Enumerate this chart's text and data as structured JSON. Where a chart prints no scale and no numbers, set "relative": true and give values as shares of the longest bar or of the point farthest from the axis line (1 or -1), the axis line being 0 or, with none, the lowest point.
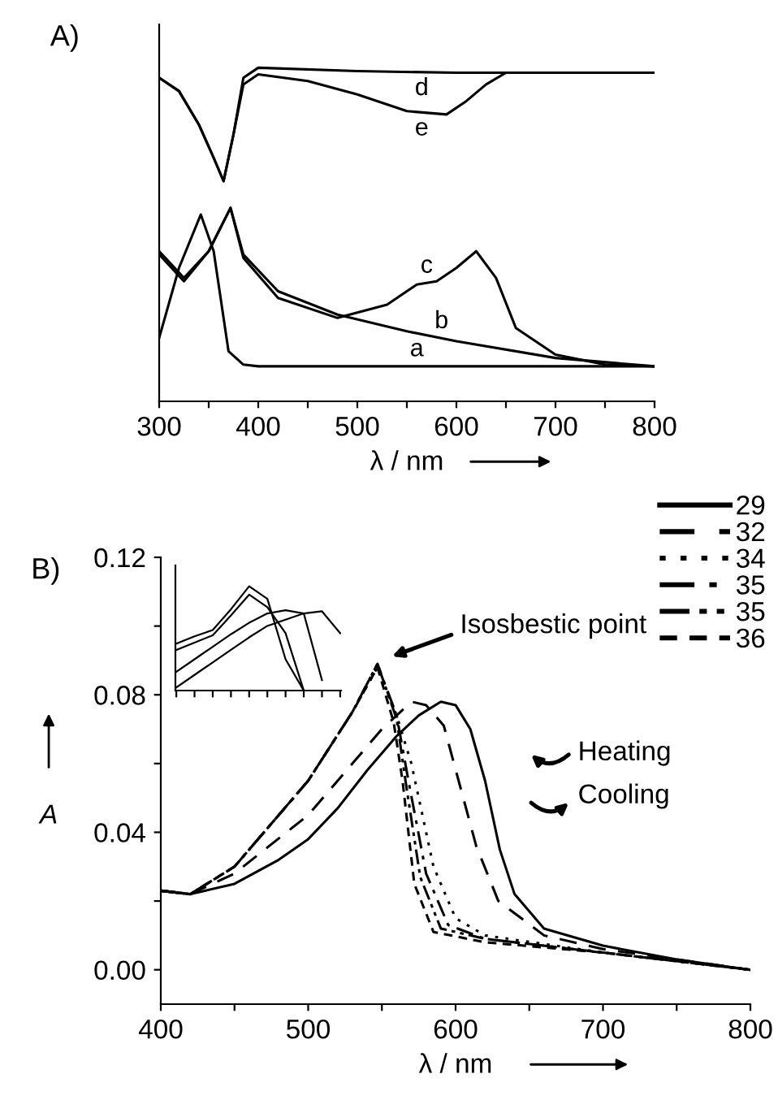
{
  "chart_data": [
    {
      "type": "line",
      "title": "A)",
      "xlabel": "λ / nm",
      "relative": true,
      "tick_labels": "x",
      "xlim": [
        300,
        800
      ],
      "xticks": [
        300,
        {
          "value": 350,
          "label": null
        },
        400,
        {
          "value": 450,
          "label": null
        },
        500,
        {
          "value": 550,
          "label": null
        },
        600,
        {
          "value": 650,
          "label": null
        },
        700,
        {
          "value": 750,
          "label": null
        },
        800
      ],
      "series": [
        {
          "name": "a",
          "color": "#000000",
          "x": [
            300,
            320,
            342,
            355,
            370,
            385,
            400,
            600,
            800
          ],
          "values": [
            0.19,
            0.4,
            0.56,
            0.45,
            0.15,
            0.11,
            0.105,
            0.105,
            0.105
          ]
        },
        {
          "name": "b",
          "color": "#000000",
          "x": [
            300,
            325,
            350,
            372,
            385,
            420,
            480,
            550,
            600,
            700,
            800
          ],
          "values": [
            0.45,
            0.37,
            0.45,
            0.58,
            0.44,
            0.33,
            0.26,
            0.21,
            0.18,
            0.13,
            0.105
          ]
        },
        {
          "name": "c",
          "color": "#000000",
          "x": [
            300,
            325,
            350,
            372,
            385,
            420,
            480,
            530,
            560,
            580,
            600,
            620,
            640,
            660,
            700,
            750,
            800
          ],
          "values": [
            0.44,
            0.36,
            0.45,
            0.58,
            0.43,
            0.31,
            0.25,
            0.29,
            0.35,
            0.36,
            0.4,
            0.45,
            0.37,
            0.22,
            0.14,
            0.11,
            0.105
          ]
        },
        {
          "name": "d",
          "color": "#000000",
          "x": [
            300,
            320,
            340,
            355,
            365,
            375,
            385,
            400,
            500,
            600,
            800
          ],
          "values": [
            0.97,
            0.93,
            0.83,
            0.73,
            0.66,
            0.8,
            0.97,
            1.0,
            0.99,
            0.985,
            0.985
          ]
        },
        {
          "name": "e",
          "color": "#000000",
          "x": [
            300,
            320,
            340,
            355,
            365,
            375,
            385,
            400,
            450,
            500,
            550,
            590,
            610,
            630,
            650,
            800
          ],
          "values": [
            0.97,
            0.93,
            0.83,
            0.73,
            0.66,
            0.8,
            0.95,
            0.98,
            0.96,
            0.92,
            0.87,
            0.86,
            0.9,
            0.95,
            0.985,
            0.985
          ]
        }
      ]
    },
    {
      "type": "line",
      "title": "B)",
      "xlabel": "λ / nm",
      "ylabel": "A",
      "xlim": [
        400,
        800
      ],
      "ylim": [
        -0.01,
        0.12
      ],
      "xticks": [
        400,
        {
          "value": 450,
          "label": null
        },
        500,
        {
          "value": 550,
          "label": null
        },
        600,
        {
          "value": 650,
          "label": null
        },
        700,
        {
          "value": 750,
          "label": null
        },
        800
      ],
      "yticks": [
        {
          "value": 0,
          "label": "0.00"
        },
        {
          "value": 0.02,
          "label": null
        },
        {
          "value": 0.04,
          "label": "0.04"
        },
        {
          "value": 0.06,
          "label": null
        },
        {
          "value": 0.08,
          "label": "0.08"
        },
        {
          "value": 0.1,
          "label": null
        },
        {
          "value": 0.12,
          "label": "0.12"
        }
      ],
      "legend": "top right",
      "annotations": [
        "Isosbestic point",
        "Heating",
        "Cooling"
      ],
      "series": [
        {
          "name": "29",
          "color": "#000000",
          "line_style": "solid",
          "x": [
            400,
            420,
            450,
            480,
            500,
            520,
            540,
            560,
            575,
            590,
            600,
            610,
            620,
            630,
            640,
            660,
            700,
            750,
            800
          ],
          "values": [
            0.023,
            0.022,
            0.025,
            0.032,
            0.038,
            0.047,
            0.058,
            0.068,
            0.074,
            0.078,
            0.077,
            0.07,
            0.055,
            0.035,
            0.022,
            0.012,
            0.007,
            0.003,
            0.0
          ]
        },
        {
          "name": "32",
          "color": "#000000",
          "line_style": "dashed",
          "x": [
            400,
            420,
            450,
            500,
            530,
            550,
            570,
            580,
            592,
            614,
            629,
            660,
            700,
            750,
            800
          ],
          "values": [
            0.023,
            0.022,
            0.028,
            0.045,
            0.06,
            0.07,
            0.078,
            0.077,
            0.071,
            0.036,
            0.02,
            0.01,
            0.006,
            0.003,
            0.0
          ]
        },
        {
          "name": "34",
          "color": "#000000",
          "line_style": "dotted",
          "x": [
            400,
            420,
            450,
            500,
            530,
            547,
            560,
            570,
            585,
            600,
            620,
            700,
            800
          ],
          "values": [
            0.023,
            0.022,
            0.03,
            0.055,
            0.075,
            0.088,
            0.074,
            0.06,
            0.03,
            0.015,
            0.01,
            0.005,
            0.0
          ]
        },
        {
          "name": "35",
          "color": "#000000",
          "line_style": "dashdot",
          "x": [
            400,
            420,
            450,
            500,
            530,
            547,
            560,
            568,
            580,
            595,
            620,
            700,
            800
          ],
          "values": [
            0.023,
            0.022,
            0.03,
            0.055,
            0.075,
            0.089,
            0.074,
            0.055,
            0.028,
            0.013,
            0.009,
            0.005,
            0.0
          ]
        },
        {
          "name": "35",
          "color": "#000000",
          "line_style": "dashdotdot",
          "x": [
            400,
            420,
            450,
            500,
            530,
            547,
            560,
            566,
            576,
            590,
            620,
            700,
            800
          ],
          "values": [
            0.023,
            0.022,
            0.03,
            0.055,
            0.075,
            0.089,
            0.073,
            0.055,
            0.027,
            0.012,
            0.009,
            0.005,
            0.0
          ]
        },
        {
          "name": "36",
          "color": "#000000",
          "line_style": "shortdash",
          "x": [
            400,
            420,
            450,
            500,
            530,
            547,
            558,
            564,
            572,
            585,
            620,
            700,
            800
          ],
          "values": [
            0.023,
            0.022,
            0.03,
            0.055,
            0.075,
            0.088,
            0.072,
            0.055,
            0.025,
            0.011,
            0.008,
            0.005,
            0.0
          ]
        }
      ]
    },
    {
      "type": "line",
      "relative": true,
      "tick_labels": false,
      "categories": [
        null,
        null,
        null,
        null,
        null,
        null,
        null,
        null,
        null,
        null
      ],
      "series": [
        {
          "color": "#000000",
          "values": [
            0.45,
            0.52,
            0.58,
            0.78,
            1.0,
            0.88,
            0.3,
            0.0,
            null,
            null
          ]
        },
        {
          "color": "#000000",
          "values": [
            0.39,
            0.46,
            0.53,
            0.72,
            0.92,
            0.8,
            0.55,
            0.0,
            null,
            null
          ]
        },
        {
          "color": "#000000",
          "values": [
            0.18,
            0.3,
            0.42,
            0.54,
            0.65,
            0.74,
            0.77,
            0.74,
            0.1,
            null
          ]
        },
        {
          "color": "#000000",
          "values": [
            0.03,
            0.15,
            0.27,
            0.39,
            0.51,
            0.62,
            0.68,
            0.74,
            0.76,
            0.55
          ]
        }
      ]
    }
  ]
}
